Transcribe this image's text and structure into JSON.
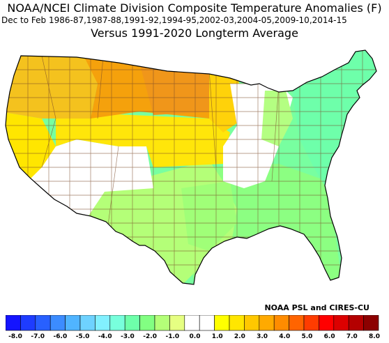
{
  "header": {
    "title": "NOAA/NCEI Climate Division Composite Temperature Anomalies (F)",
    "subtitle": "Dec to Feb  1986-87,1987-88,1991-92,1994-95,2002-03,2004-05,2009-10,2014-15",
    "subtitle2": "Versus 1991-2020 Longterm Average"
  },
  "credit": "NOAA PSL and CIRES-CU",
  "colorbar": {
    "colors": [
      "#1414ff",
      "#1e3cff",
      "#2860ff",
      "#3c8cff",
      "#50b4ff",
      "#6ed2ff",
      "#82f0ff",
      "#78ffdc",
      "#6effaa",
      "#82ff82",
      "#b4ff78",
      "#e6ff82",
      "#ffffff",
      "#ffffff",
      "#ffff00",
      "#ffe600",
      "#ffc800",
      "#ffaa00",
      "#ff8c00",
      "#ff6400",
      "#ff3c00",
      "#ff0000",
      "#dc0000",
      "#b40000",
      "#8c0000"
    ],
    "labels": [
      "-8.0",
      "-7.0",
      "-6.0",
      "-5.0",
      "-4.0",
      "-3.0",
      "-2.0",
      "-1.0",
      "0.0",
      "1.0",
      "2.0",
      "3.0",
      "4.0",
      "5.0",
      "6.0",
      "7.0",
      "8.0"
    ]
  },
  "map_regions": {
    "pacific_northwest": "#f4c21e",
    "california_coast": "#ffe600",
    "nevada_south": "#ffffff",
    "northern_rockies": "#f5a10c",
    "northern_plains": "#f0a010",
    "central_plains": "#ffe60a",
    "upper_midwest": "#ffffff",
    "southwest_southern_plains": "#b4ff78",
    "southeast": "#8cff82",
    "east": "#78ffa0",
    "northeast": "#6effaa",
    "great_lakes": "#ffffff"
  }
}
